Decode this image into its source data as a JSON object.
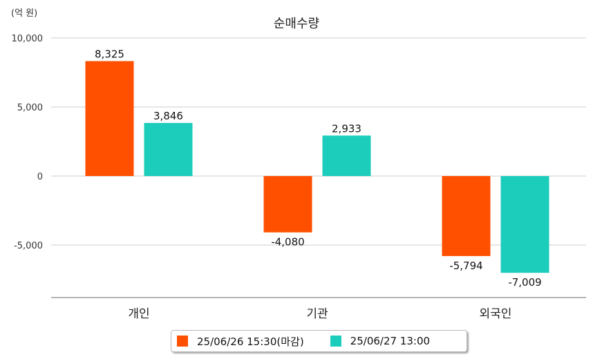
{
  "chart_data": {
    "type": "bar",
    "title": "순매수량",
    "unit_label": "(억 원)",
    "categories": [
      "개인",
      "기관",
      "외국인"
    ],
    "series": [
      {
        "name": "25/06/26 15:30(마감)",
        "color": "#ff5000",
        "values": [
          8325,
          -4080,
          -5794
        ]
      },
      {
        "name": "25/06/27 13:00",
        "color": "#1dcdbc",
        "values": [
          3846,
          2933,
          -7009
        ]
      }
    ],
    "data_labels": [
      [
        "8,325",
        "-4,080",
        "-5,794"
      ],
      [
        "3,846",
        "2,933",
        "-7,009"
      ]
    ],
    "y_ticks": [
      10000,
      5000,
      0,
      -5000
    ],
    "y_tick_labels": [
      "10,000",
      "5,000",
      "0",
      "-5,000"
    ],
    "ylim": [
      -8800,
      10000
    ],
    "grid": true,
    "legend_position": "bottom"
  }
}
